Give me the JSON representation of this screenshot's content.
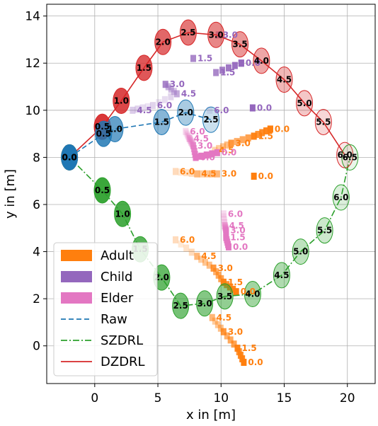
{
  "chart_data": {
    "type": "scatter",
    "xlabel": "x in [m]",
    "ylabel": "y in [m]",
    "xlim": [
      -3.8,
      22.2
    ],
    "ylim": [
      -1.6,
      14.5
    ],
    "xticks": [
      0,
      5,
      10,
      15,
      20
    ],
    "yticks": [
      0,
      2,
      4,
      6,
      8,
      10,
      12,
      14
    ],
    "grid": true,
    "legend_position": "lower-left",
    "legend": [
      {
        "label": "Adult",
        "kind": "patch",
        "color": "#ff7f0e"
      },
      {
        "label": "Child",
        "kind": "patch",
        "color": "#9467bd"
      },
      {
        "label": "Elder",
        "kind": "patch",
        "color": "#e377c2"
      },
      {
        "label": "Raw",
        "kind": "line",
        "style": "dashed",
        "color": "#1f77b4"
      },
      {
        "label": "SZDRL",
        "kind": "line",
        "style": "dashdot",
        "color": "#2ca02c"
      },
      {
        "label": "DZDRL",
        "kind": "line",
        "style": "solid",
        "color": "#d62728"
      }
    ],
    "robot_paths": [
      {
        "name": "Raw",
        "color": "#1f77b4",
        "style": "dashed",
        "points": [
          {
            "t": "0.0",
            "x": -2.0,
            "y": 8.0
          },
          {
            "t": "0.5",
            "x": 0.7,
            "y": 9.0
          },
          {
            "t": "1.0",
            "x": 1.6,
            "y": 9.2
          },
          {
            "t": "1.5",
            "x": 5.3,
            "y": 9.5
          },
          {
            "t": "2.0",
            "x": 7.2,
            "y": 9.9
          },
          {
            "t": "2.5",
            "x": 9.2,
            "y": 9.6
          }
        ]
      },
      {
        "name": "SZDRL",
        "color": "#2ca02c",
        "style": "dashdot",
        "points": [
          {
            "t": "0.0",
            "x": -2.0,
            "y": 8.0
          },
          {
            "t": "0.5",
            "x": 0.6,
            "y": 6.6
          },
          {
            "t": "1.0",
            "x": 2.2,
            "y": 5.6
          },
          {
            "t": "1.5",
            "x": 3.6,
            "y": 4.1
          },
          {
            "t": "2.0",
            "x": 5.3,
            "y": 2.9
          },
          {
            "t": "2.5",
            "x": 6.8,
            "y": 1.7
          },
          {
            "t": "3.0",
            "x": 8.7,
            "y": 1.8
          },
          {
            "t": "3.5",
            "x": 10.3,
            "y": 2.1
          },
          {
            "t": "4.0",
            "x": 12.5,
            "y": 2.2
          },
          {
            "t": "4.5",
            "x": 14.8,
            "y": 3.0
          },
          {
            "t": "5.0",
            "x": 16.3,
            "y": 4.0
          },
          {
            "t": "5.5",
            "x": 18.2,
            "y": 4.9
          },
          {
            "t": "6.0",
            "x": 19.5,
            "y": 6.3
          },
          {
            "t": "6.5",
            "x": 20.2,
            "y": 8.0
          }
        ]
      },
      {
        "name": "DZDRL",
        "color": "#d62728",
        "style": "solid",
        "points": [
          {
            "t": "0.0",
            "x": -2.0,
            "y": 8.0
          },
          {
            "t": "0.5",
            "x": 0.6,
            "y": 9.3
          },
          {
            "t": "1.0",
            "x": 2.1,
            "y": 10.4
          },
          {
            "t": "1.5",
            "x": 3.9,
            "y": 11.8
          },
          {
            "t": "2.0",
            "x": 5.4,
            "y": 12.9
          },
          {
            "t": "2.5",
            "x": 7.4,
            "y": 13.3
          },
          {
            "t": "3.0",
            "x": 9.6,
            "y": 13.2
          },
          {
            "t": "3.5",
            "x": 11.5,
            "y": 12.8
          },
          {
            "t": "4.0",
            "x": 13.2,
            "y": 12.1
          },
          {
            "t": "4.5",
            "x": 15.0,
            "y": 11.3
          },
          {
            "t": "5.0",
            "x": 16.6,
            "y": 10.3
          },
          {
            "t": "5.5",
            "x": 18.1,
            "y": 9.5
          },
          {
            "t": "6.0",
            "x": 19.8,
            "y": 8.1
          }
        ]
      }
    ],
    "pedestrians": [
      {
        "type": "Adult",
        "color": "#ff7f0e",
        "labels": [
          {
            "t": "0.0",
            "x": 13.9,
            "y": 9.2
          },
          {
            "t": "1.5",
            "x": 12.6,
            "y": 8.9
          },
          {
            "t": "3.0",
            "x": 10.8,
            "y": 8.6
          },
          {
            "t": "4.5",
            "x": 9.5,
            "y": 8.3
          }
        ]
      },
      {
        "type": "Adult",
        "color": "#ff7f0e",
        "labels": [
          {
            "t": "6.0",
            "x": 6.4,
            "y": 7.4
          },
          {
            "t": "4.5",
            "x": 8.1,
            "y": 7.3
          },
          {
            "t": "3.0",
            "x": 9.7,
            "y": 7.3
          },
          {
            "t": "0.0",
            "x": 12.6,
            "y": 7.2
          }
        ]
      },
      {
        "type": "Adult",
        "color": "#ff7f0e",
        "labels": [
          {
            "t": "6.0",
            "x": 6.4,
            "y": 4.5
          },
          {
            "t": "4.5",
            "x": 8.1,
            "y": 3.8
          },
          {
            "t": "3.0",
            "x": 9.4,
            "y": 3.3
          },
          {
            "t": "1.5",
            "x": 10.2,
            "y": 2.7
          },
          {
            "t": "0.0",
            "x": 11.2,
            "y": 2.3
          }
        ]
      },
      {
        "type": "Adult",
        "color": "#ff7f0e",
        "labels": [
          {
            "t": "4.5",
            "x": 9.3,
            "y": 1.2
          },
          {
            "t": "3.0",
            "x": 10.2,
            "y": 0.6
          },
          {
            "t": "1.5",
            "x": 11.3,
            "y": -0.1
          },
          {
            "t": "0.0",
            "x": 11.8,
            "y": -0.7
          }
        ]
      },
      {
        "type": "Child",
        "color": "#9467bd",
        "labels": [
          {
            "t": "3.0",
            "x": 9.8,
            "y": 13.2
          },
          {
            "t": "1.5",
            "x": 7.8,
            "y": 12.2
          },
          {
            "t": "0.0",
            "x": 11.6,
            "y": 12.0
          },
          {
            "t": "1.5",
            "x": 9.6,
            "y": 11.6
          },
          {
            "t": "3.0",
            "x": 5.6,
            "y": 11.1
          },
          {
            "t": "4.5",
            "x": 6.5,
            "y": 10.7
          },
          {
            "t": "6.0",
            "x": 4.6,
            "y": 10.2
          },
          {
            "t": "4.5",
            "x": 3.0,
            "y": 10.0
          },
          {
            "t": "6.0",
            "x": 9.1,
            "y": 10.0
          },
          {
            "t": "0.0",
            "x": 12.5,
            "y": 10.1
          }
        ]
      },
      {
        "type": "Elder",
        "color": "#e377c2",
        "labels": [
          {
            "t": "6.0",
            "x": 7.2,
            "y": 9.1
          },
          {
            "t": "4.5",
            "x": 7.5,
            "y": 8.8
          },
          {
            "t": "3.0",
            "x": 7.8,
            "y": 8.5
          },
          {
            "t": "0.0",
            "x": 8.0,
            "y": 8.0
          },
          {
            "t": "0.0",
            "x": 9.7,
            "y": 8.2
          }
        ]
      },
      {
        "type": "Elder",
        "color": "#e377c2",
        "labels": [
          {
            "t": "6.0",
            "x": 10.2,
            "y": 5.6
          },
          {
            "t": "4.5",
            "x": 10.3,
            "y": 5.1
          },
          {
            "t": "3.0",
            "x": 10.4,
            "y": 4.9
          },
          {
            "t": "1.5",
            "x": 10.4,
            "y": 4.6
          },
          {
            "t": "0.0",
            "x": 10.6,
            "y": 4.2
          }
        ]
      }
    ]
  }
}
